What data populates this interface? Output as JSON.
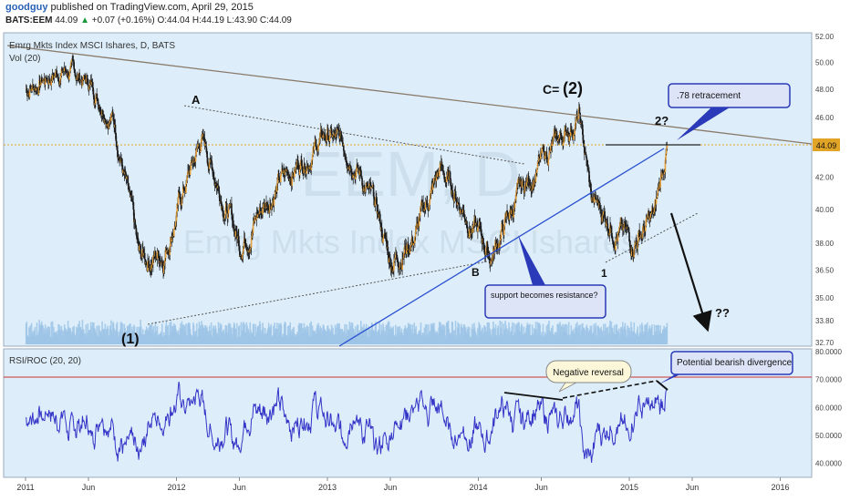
{
  "header": {
    "user": "goodguy",
    "published": "published on TradingView.com, April 29, 2015",
    "symbol": "BATS:EEM",
    "last": "44.09",
    "change_arrow": "▲",
    "change": "+0.07 (+0.16%)",
    "open": "O:44.04",
    "high": "H:44.19",
    "low": "L:43.90",
    "close": "C:44.09"
  },
  "main_panel": {
    "title": "Emrg Mkts Index MSCI Ishares, D, BATS",
    "vol_label": "Vol (20)",
    "watermark_symbol": "EEM, D",
    "watermark_name": "Emrg Mkts Index MSCI Ishares",
    "price_ticks": [
      "52.00",
      "50.00",
      "48.00",
      "46.00",
      "44.09",
      "42.00",
      "40.00",
      "38.00",
      "36.50",
      "35.00",
      "33.80",
      "32.70"
    ],
    "last_price_badge": "44.09"
  },
  "annotations": {
    "wave_A": "A",
    "wave_B": "B",
    "wave_C2": "C=",
    "wave_2": "(2)",
    "wave_1_paren": "(1)",
    "wave_1": "1",
    "wave_2q": "2?",
    "qq": "??",
    "retracement_box": ".78 retracement",
    "support_box": "support becomes resistance?",
    "negative_reversal": "Negative reversal",
    "bearish_divergence": "Potential bearish divergence"
  },
  "rsi_panel": {
    "title": "RSI/ROC (20, 20)",
    "ticks": [
      "80.0000",
      "70.0000",
      "60.0000",
      "50.0000",
      "40.0000"
    ]
  },
  "x_axis": {
    "labels": [
      "2011",
      "Jun",
      "2012",
      "Jun",
      "2013",
      "Jun",
      "2014",
      "Jun",
      "2015",
      "Jun",
      "2016"
    ]
  },
  "colors": {
    "background": "#ddeefa",
    "candle": "#1a1a1a",
    "candle_up": "#e8a13a",
    "volume": "#9ec4e6",
    "trendline_blue": "#2a4fd0",
    "resistance_line": "#8a7a6a",
    "price_line": "#e2a426",
    "rsi_line": "#3535c8",
    "rsi_70": "#d03030",
    "callout_border": "#2a3ab8"
  },
  "chart_data": [
    {
      "type": "candlestick",
      "title": "Emrg Mkts Index MSCI Ishares, D, BATS",
      "x_labels": [
        "2011",
        "Jun",
        "2012",
        "Jun",
        "2013",
        "Jun",
        "2014",
        "Jun",
        "2015",
        "Jun",
        "2016"
      ],
      "ylim": [
        32.7,
        52.0
      ],
      "yscale": "log",
      "grid": false,
      "x": [
        "2011-01",
        "2011-04",
        "2011-06",
        "2011-08",
        "2011-10",
        "2011-12",
        "2012-03",
        "2012-06",
        "2012-09",
        "2013-01",
        "2013-03",
        "2013-05",
        "2013-06",
        "2013-08",
        "2013-10",
        "2014-01",
        "2014-02",
        "2014-04",
        "2014-06",
        "2014-09",
        "2014-10",
        "2014-12",
        "2015-01",
        "2015-03",
        "2015-04"
      ],
      "close": [
        48.0,
        49.5,
        48.5,
        46.0,
        37.0,
        37.5,
        44.5,
        38.0,
        41.5,
        44.8,
        43.5,
        39.5,
        37.0,
        38.5,
        42.5,
        38.5,
        37.3,
        40.5,
        43.0,
        46.0,
        40.5,
        39.0,
        38.0,
        39.5,
        44.09
      ],
      "last_price": 44.09
    },
    {
      "type": "line",
      "title": "RSI/ROC (20, 20)",
      "ylim": [
        35,
        80
      ],
      "reference_line": 70,
      "x_labels": [
        "2011",
        "Jun",
        "2012",
        "Jun",
        "2013",
        "Jun",
        "2014",
        "Jun",
        "2015",
        "Jun",
        "2016"
      ]
    }
  ]
}
